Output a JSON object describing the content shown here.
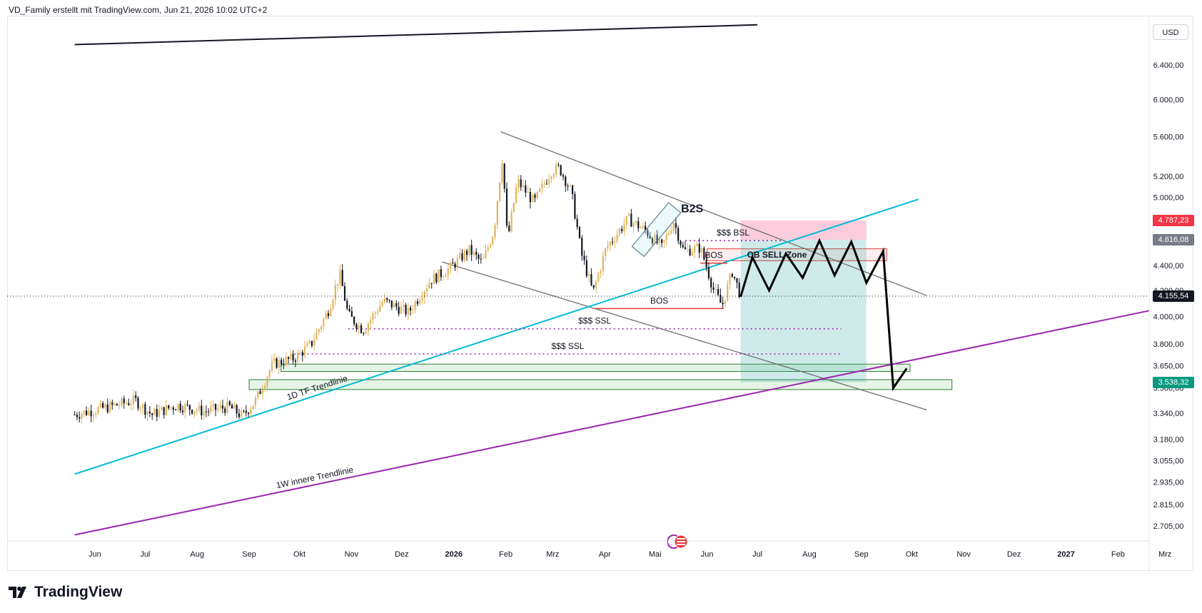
{
  "header": {
    "text": "VD_Family erstellt mit TradingView.com, Jun 21, 2026 10:02 UTC+2"
  },
  "currency": "USD",
  "brand": {
    "name": "TradingView"
  },
  "colors": {
    "up": "#e0b45c",
    "down": "#131722",
    "teal": "#00bcd4",
    "purple": "#9c27b0",
    "gray": "#707070",
    "red": "#e53935",
    "green_zone": "#4caf50",
    "target_zone": "#26a69a",
    "stop_zone": "#f48fb1",
    "label_red": "#f23645",
    "label_gray": "#787b86",
    "label_dark": "#131722",
    "label_green": "#089981"
  },
  "chart_data": {
    "type": "candlestick",
    "instrument": "",
    "y_scale": "log",
    "ylim": [
      2630,
      7000
    ],
    "y_ticks": [
      6400,
      6000,
      5600,
      5200,
      5000,
      4600,
      4400,
      4200,
      4000,
      3800,
      3650,
      3500,
      3340,
      3180,
      3055,
      2935,
      2815,
      2705
    ],
    "y_tick_labels": [
      "6.400,00",
      "6.000,00",
      "5.600,00",
      "5.200,00",
      "5.000,00",
      "4.600,00",
      "4.400,00",
      "4.200,00",
      "4.000,00",
      "3.800,00",
      "3.650,00",
      "3.500,00",
      "3.340,00",
      "3.180,00",
      "3.055,00",
      "2.935,00",
      "2.815,00",
      "2.705,00"
    ],
    "x_axis_labels": [
      {
        "label": "Jun",
        "date": "2025-06-01"
      },
      {
        "label": "Jul",
        "date": "2025-07-01"
      },
      {
        "label": "Aug",
        "date": "2025-08-01"
      },
      {
        "label": "Sep",
        "date": "2025-09-01"
      },
      {
        "label": "Okt",
        "date": "2025-10-01"
      },
      {
        "label": "Nov",
        "date": "2025-11-01"
      },
      {
        "label": "Dez",
        "date": "2025-12-01"
      },
      {
        "label": "2026",
        "date": "2026-01-01"
      },
      {
        "label": "Feb",
        "date": "2026-02-01"
      },
      {
        "label": "Mrz",
        "date": "2026-03-01"
      },
      {
        "label": "Apr",
        "date": "2026-04-01"
      },
      {
        "label": "Mai",
        "date": "2026-05-01"
      },
      {
        "label": "Jun",
        "date": "2026-06-01"
      },
      {
        "label": "Jul",
        "date": "2026-07-01"
      },
      {
        "label": "Aug",
        "date": "2026-08-01"
      },
      {
        "label": "Sep",
        "date": "2026-09-01"
      },
      {
        "label": "Okt",
        "date": "2026-10-01"
      },
      {
        "label": "Nov",
        "date": "2026-11-01"
      },
      {
        "label": "Dez",
        "date": "2026-12-01"
      },
      {
        "label": "2027",
        "date": "2027-01-01"
      },
      {
        "label": "Feb",
        "date": "2027-02-01"
      },
      {
        "label": "Mrz",
        "date": "2027-03-01"
      }
    ],
    "price_labels": [
      {
        "text": "4.787,23",
        "value": 4787.23,
        "color": "#f23645"
      },
      {
        "text": "4.616,08",
        "value": 4616.08,
        "color": "#787b86"
      },
      {
        "text": "4.155,54",
        "value": 4155.54,
        "color": "#131722"
      },
      {
        "text": "3.538,32",
        "value": 3538.32,
        "color": "#089981"
      }
    ],
    "current_price": 4155.54,
    "price_path": [
      [
        "2025-05-20",
        3330
      ],
      [
        "2025-06-10",
        3380
      ],
      [
        "2025-06-25",
        3420
      ],
      [
        "2025-07-05",
        3330
      ],
      [
        "2025-07-20",
        3390
      ],
      [
        "2025-08-05",
        3350
      ],
      [
        "2025-08-20",
        3380
      ],
      [
        "2025-08-28",
        3320
      ],
      [
        "2025-09-05",
        3420
      ],
      [
        "2025-09-15",
        3660
      ],
      [
        "2025-09-28",
        3700
      ],
      [
        "2025-10-08",
        3800
      ],
      [
        "2025-10-18",
        4040
      ],
      [
        "2025-10-25",
        4330
      ],
      [
        "2025-10-30",
        4010
      ],
      [
        "2025-11-08",
        3900
      ],
      [
        "2025-11-20",
        4120
      ],
      [
        "2025-12-05",
        4030
      ],
      [
        "2025-12-18",
        4280
      ],
      [
        "2025-12-30",
        4380
      ],
      [
        "2026-01-10",
        4530
      ],
      [
        "2026-01-18",
        4420
      ],
      [
        "2026-01-25",
        4700
      ],
      [
        "2026-01-30",
        5400
      ],
      [
        "2026-02-02",
        4600
      ],
      [
        "2026-02-08",
        5150
      ],
      [
        "2026-02-18",
        4950
      ],
      [
        "2026-02-28",
        5250
      ],
      [
        "2026-03-05",
        5280
      ],
      [
        "2026-03-12",
        5050
      ],
      [
        "2026-03-18",
        4500
      ],
      [
        "2026-03-25",
        4180
      ],
      [
        "2026-04-02",
        4550
      ],
      [
        "2026-04-15",
        4800
      ],
      [
        "2026-04-25",
        4700
      ],
      [
        "2026-05-05",
        4550
      ],
      [
        "2026-05-12",
        4780
      ],
      [
        "2026-05-18",
        4520
      ],
      [
        "2026-05-28",
        4550
      ],
      [
        "2026-06-05",
        4200
      ],
      [
        "2026-06-10",
        4080
      ],
      [
        "2026-06-16",
        4350
      ],
      [
        "2026-06-21",
        4160
      ]
    ],
    "projection_path": [
      [
        "2026-06-21",
        4150
      ],
      [
        "2026-06-28",
        4470
      ],
      [
        "2026-07-08",
        4200
      ],
      [
        "2026-07-18",
        4500
      ],
      [
        "2026-07-28",
        4300
      ],
      [
        "2026-08-07",
        4610
      ],
      [
        "2026-08-16",
        4320
      ],
      [
        "2026-08-26",
        4600
      ],
      [
        "2026-09-04",
        4260
      ],
      [
        "2026-09-14",
        4520
      ],
      [
        "2026-09-20",
        3500
      ],
      [
        "2026-09-28",
        3630
      ]
    ],
    "trendlines": [
      {
        "name": "",
        "color": "#131722",
        "from": [
          "2025-05-20",
          6650
        ],
        "to": [
          "2026-07-01",
          6900
        ]
      },
      {
        "name": "",
        "color": "#707070",
        "from": [
          "2026-01-29",
          5650
        ],
        "to": [
          "2026-10-10",
          4160
        ]
      },
      {
        "name": "",
        "color": "#707070",
        "from": [
          "2025-12-25",
          4430
        ],
        "to": [
          "2026-10-10",
          3360
        ]
      },
      {
        "name": "1D TF Trendlinie",
        "color": "#00bcd4",
        "from": [
          "2025-05-20",
          2980
        ],
        "to": [
          "2026-10-05",
          4980
        ]
      },
      {
        "name": "1W innere Trendlinie",
        "color": "#9c27b0",
        "from": [
          "2025-05-20",
          2660
        ],
        "to": [
          "2027-05-10",
          4260
        ]
      }
    ],
    "levels": [
      {
        "label": "BOS",
        "color": "#e53935",
        "price": 4060,
        "from": "2026-03-26",
        "to": "2026-06-11"
      },
      {
        "label": "BOS",
        "color": "#e53935",
        "price": 4420,
        "from": "2026-05-28",
        "to": "2026-06-13"
      },
      {
        "label": "$$$ BSL",
        "color": "#9c27b0",
        "price": 4610,
        "from": "2026-05-19",
        "to": "2026-07-15"
      },
      {
        "label": "$$$ SSL",
        "color": "#9c27b0",
        "price": 3910,
        "from": "2025-10-30",
        "to": "2026-08-20"
      },
      {
        "label": "$$$ SSL",
        "color": "#9c27b0",
        "price": 3730,
        "from": "2025-09-28",
        "to": "2026-08-20"
      }
    ],
    "zones": [
      {
        "label": "OB SELL Zone",
        "type": "order_block",
        "top": 4540,
        "bottom": 4440,
        "from": "2026-06-01",
        "to": "2026-09-16"
      },
      {
        "label": "",
        "type": "support",
        "top": 3660,
        "bottom": 3610,
        "from": "2025-09-20",
        "to": "2026-09-30"
      },
      {
        "label": "",
        "type": "support",
        "top": 3555,
        "bottom": 3490,
        "from": "2025-09-01",
        "to": "2026-10-25"
      },
      {
        "label": "",
        "type": "stop",
        "top": 4787.23,
        "bottom": 4616.08,
        "from": "2026-06-21",
        "to": "2026-09-04"
      },
      {
        "label": "",
        "type": "target",
        "top": 4616.08,
        "bottom": 3538.32,
        "from": "2026-06-21",
        "to": "2026-09-04"
      }
    ],
    "annotations": [
      {
        "label": "B2S",
        "date": "2026-05-02",
        "price": 4720
      }
    ]
  }
}
